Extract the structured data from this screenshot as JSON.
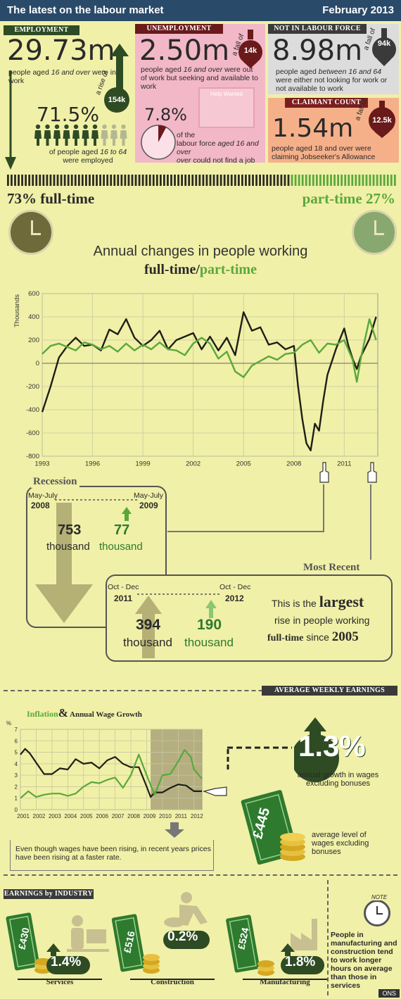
{
  "header": {
    "title": "The latest on the labour market",
    "date": "February 2013"
  },
  "employment": {
    "tag": "EMPLOYMENT",
    "value": "29.73m",
    "desc_pre": "people aged ",
    "desc_em": "16 and over",
    "desc_post": " were in work",
    "rise_label": "a rise of",
    "rise_value": "154k",
    "rate": "71.5%",
    "rate_desc_pre": "of people aged ",
    "rate_desc_em": "16 to 64",
    "rate_desc_post": " were employed",
    "people_employed_fraction": 0.715
  },
  "unemployment": {
    "tag": "UNEMPLOYMENT",
    "value": "2.50m",
    "fall_label": "a fall of",
    "fall_value": "14k",
    "desc_pre": "people aged ",
    "desc_em": "16 and over",
    "desc_post": " were out of work but seeking and available to work",
    "rate": "7.8%",
    "rate_desc_a": "of the",
    "rate_desc_b": "labour force ",
    "rate_desc_em": "aged 16 and over",
    "rate_desc_c": " could not find a job",
    "sign_text": "Help Wanted",
    "rate_fraction": 0.078
  },
  "inactive": {
    "tag": "NOT IN LABOUR FORCE",
    "value": "8.98m",
    "fall_label": "a fall of",
    "fall_value": "94k",
    "desc_pre": "people aged ",
    "desc_em": "between 16 and 64",
    "desc_post": " were either not looking for work or not available to work"
  },
  "claimant": {
    "tag": "CLAIMANT COUNT",
    "value": "1.54m",
    "fall_label": "a fall of",
    "fall_value": "12.5k",
    "desc": "people aged 18 and over were claiming Jobseeker's Allowance"
  },
  "split": {
    "full_pct": "73%",
    "full_label": "full-time",
    "part_label": "part-time",
    "part_pct": "27%",
    "full_fraction": 0.73
  },
  "chart_title": {
    "line1": "Annual changes in people working",
    "full": "full-time",
    "slash": "/",
    "part": "part-time"
  },
  "recession": {
    "title": "Recession",
    "from": "May-July",
    "from_year": "2008",
    "to": "May-July",
    "to_year": "2009",
    "full_value": "753",
    "full_unit": "thousand",
    "part_value": "77",
    "part_unit": "thousand"
  },
  "recent": {
    "title": "Most Recent",
    "from": "Oct - Dec",
    "from_year": "2011",
    "to": "Oct - Dec",
    "to_year": "2012",
    "full_value": "394",
    "full_unit": "thousand",
    "part_value": "190",
    "part_unit": "thousand",
    "txt1": "This is the ",
    "txt_big": "largest",
    "txt2": "rise in people working",
    "txt3": "full-time",
    "txt4": " since ",
    "txt5": "2005"
  },
  "earnings": {
    "tag": "AVERAGE WEEKLY EARNINGS",
    "growth": "1.3%",
    "growth_desc": "annual growth in wages excluding bonuses",
    "level": "£445",
    "level_desc": "average level of wages excluding bonuses",
    "note": "Even though wages have been rising, in recent years prices have been rising at a faster rate."
  },
  "industry": {
    "tag": "EARNINGS by INDUSTRY",
    "items": [
      {
        "label": "Services",
        "amount": "£430",
        "growth": "1.4%"
      },
      {
        "label": "Construction",
        "amount": "£516",
        "growth": "0.2%"
      },
      {
        "label": "Manufacturing",
        "amount": "£524",
        "growth": "1.8%"
      }
    ],
    "note_tag": "NOTE",
    "note": "People in manufacturing and construction tend to work longer hours on average than those in services"
  },
  "source": "ONS",
  "colors": {
    "full": "#1e1e16",
    "part": "#5aa83a",
    "dark_green": "#2e4b24",
    "maroon": "#6a1a1a",
    "header": "#2a4a6a",
    "bg": "#f0f0a8"
  },
  "chart_data": [
    {
      "type": "line",
      "ylabel": "Thousands",
      "ylim": [
        -800,
        600
      ],
      "yticks": [
        -800,
        -600,
        -400,
        -200,
        0,
        200,
        400,
        600
      ],
      "xlim": [
        1993,
        2013
      ],
      "xticks": [
        "1993",
        "1996",
        "1999",
        "2002",
        "2005",
        "2008",
        "2011"
      ],
      "grid": true,
      "series": [
        {
          "name": "full-time",
          "color": "#1e1e16",
          "x": [
            1993,
            1993.5,
            1994,
            1994.5,
            1995,
            1995.5,
            1996,
            1996.5,
            1997,
            1997.5,
            1998,
            1998.5,
            1999,
            1999.5,
            2000,
            2000.5,
            2001,
            2001.5,
            2002,
            2002.5,
            2003,
            2003.5,
            2004,
            2004.5,
            2005,
            2005.5,
            2006,
            2006.5,
            2007,
            2007.5,
            2008,
            2008.25,
            2008.5,
            2008.75,
            2009,
            2009.25,
            2009.5,
            2009.75,
            2010,
            2010.5,
            2011,
            2011.25,
            2011.5,
            2011.75,
            2012,
            2012.5,
            2012.9
          ],
          "y": [
            -420,
            -200,
            50,
            150,
            220,
            150,
            160,
            110,
            290,
            250,
            380,
            220,
            150,
            200,
            280,
            120,
            200,
            230,
            260,
            120,
            230,
            110,
            220,
            70,
            440,
            280,
            310,
            160,
            180,
            120,
            150,
            -200,
            -480,
            -690,
            -750,
            -520,
            -580,
            -320,
            -100,
            120,
            300,
            150,
            40,
            -50,
            60,
            210,
            400
          ]
        },
        {
          "name": "part-time",
          "color": "#5aa83a",
          "x": [
            1993,
            1993.5,
            1994,
            1994.5,
            1995,
            1995.5,
            1996,
            1996.5,
            1997,
            1997.5,
            1998,
            1998.5,
            1999,
            1999.5,
            2000,
            2000.5,
            2001,
            2001.5,
            2002,
            2002.5,
            2003,
            2003.5,
            2004,
            2004.5,
            2005,
            2005.5,
            2006,
            2006.5,
            2007,
            2007.5,
            2008,
            2008.5,
            2009,
            2009.5,
            2010,
            2010.5,
            2011,
            2011.5,
            2011.75,
            2012,
            2012.5,
            2012.9
          ],
          "y": [
            80,
            150,
            170,
            140,
            110,
            180,
            160,
            120,
            150,
            100,
            170,
            110,
            160,
            120,
            180,
            120,
            110,
            70,
            170,
            220,
            170,
            40,
            100,
            -70,
            -120,
            -20,
            20,
            60,
            30,
            80,
            90,
            160,
            200,
            90,
            170,
            160,
            200,
            30,
            -160,
            50,
            380,
            200
          ]
        }
      ]
    },
    {
      "type": "line",
      "title": "Inflation & Annual Wage Growth",
      "ylabel": "%",
      "ylim": [
        0,
        7
      ],
      "yticks": [
        0,
        1,
        2,
        3,
        4,
        5,
        6,
        7
      ],
      "xlim": [
        2001,
        2012.5
      ],
      "xticks": [
        "2001",
        "2002",
        "2003",
        "2004",
        "2005",
        "2006",
        "2007",
        "2008",
        "2009",
        "2010",
        "2011",
        "2012"
      ],
      "grid": true,
      "series": [
        {
          "name": "Annual Wage Growth",
          "color": "#1e1e16",
          "x": [
            2001,
            2001.3,
            2001.6,
            2002,
            2002.5,
            2003,
            2003.5,
            2004,
            2004.5,
            2005,
            2005.5,
            2006,
            2006.5,
            2007,
            2007.5,
            2008,
            2008.5,
            2009,
            2009.25,
            2009.5,
            2010,
            2010.5,
            2011,
            2011.5,
            2012,
            2012.5
          ],
          "y": [
            4.8,
            5.3,
            4.9,
            4.1,
            3.1,
            3.1,
            3.6,
            3.5,
            4.4,
            4.0,
            4.1,
            3.6,
            4.3,
            4.6,
            4.0,
            3.7,
            3.7,
            2.0,
            1.1,
            1.5,
            1.5,
            1.9,
            2.2,
            2.1,
            1.6,
            1.6
          ]
        },
        {
          "name": "Inflation",
          "color": "#5aa83a",
          "x": [
            2001,
            2001.5,
            2002,
            2002.5,
            2003,
            2003.5,
            2004,
            2004.5,
            2005,
            2005.5,
            2006,
            2006.5,
            2007,
            2007.5,
            2008,
            2008.5,
            2009,
            2009.5,
            2010,
            2010.5,
            2011,
            2011.4,
            2011.8,
            2012,
            2012.5
          ],
          "y": [
            1.0,
            1.6,
            1.1,
            1.3,
            1.4,
            1.4,
            1.2,
            1.4,
            2.0,
            2.4,
            2.3,
            2.6,
            2.8,
            1.9,
            3.0,
            4.8,
            3.0,
            1.3,
            3.0,
            3.1,
            4.2,
            5.2,
            4.6,
            3.5,
            2.7
          ]
        }
      ]
    }
  ]
}
